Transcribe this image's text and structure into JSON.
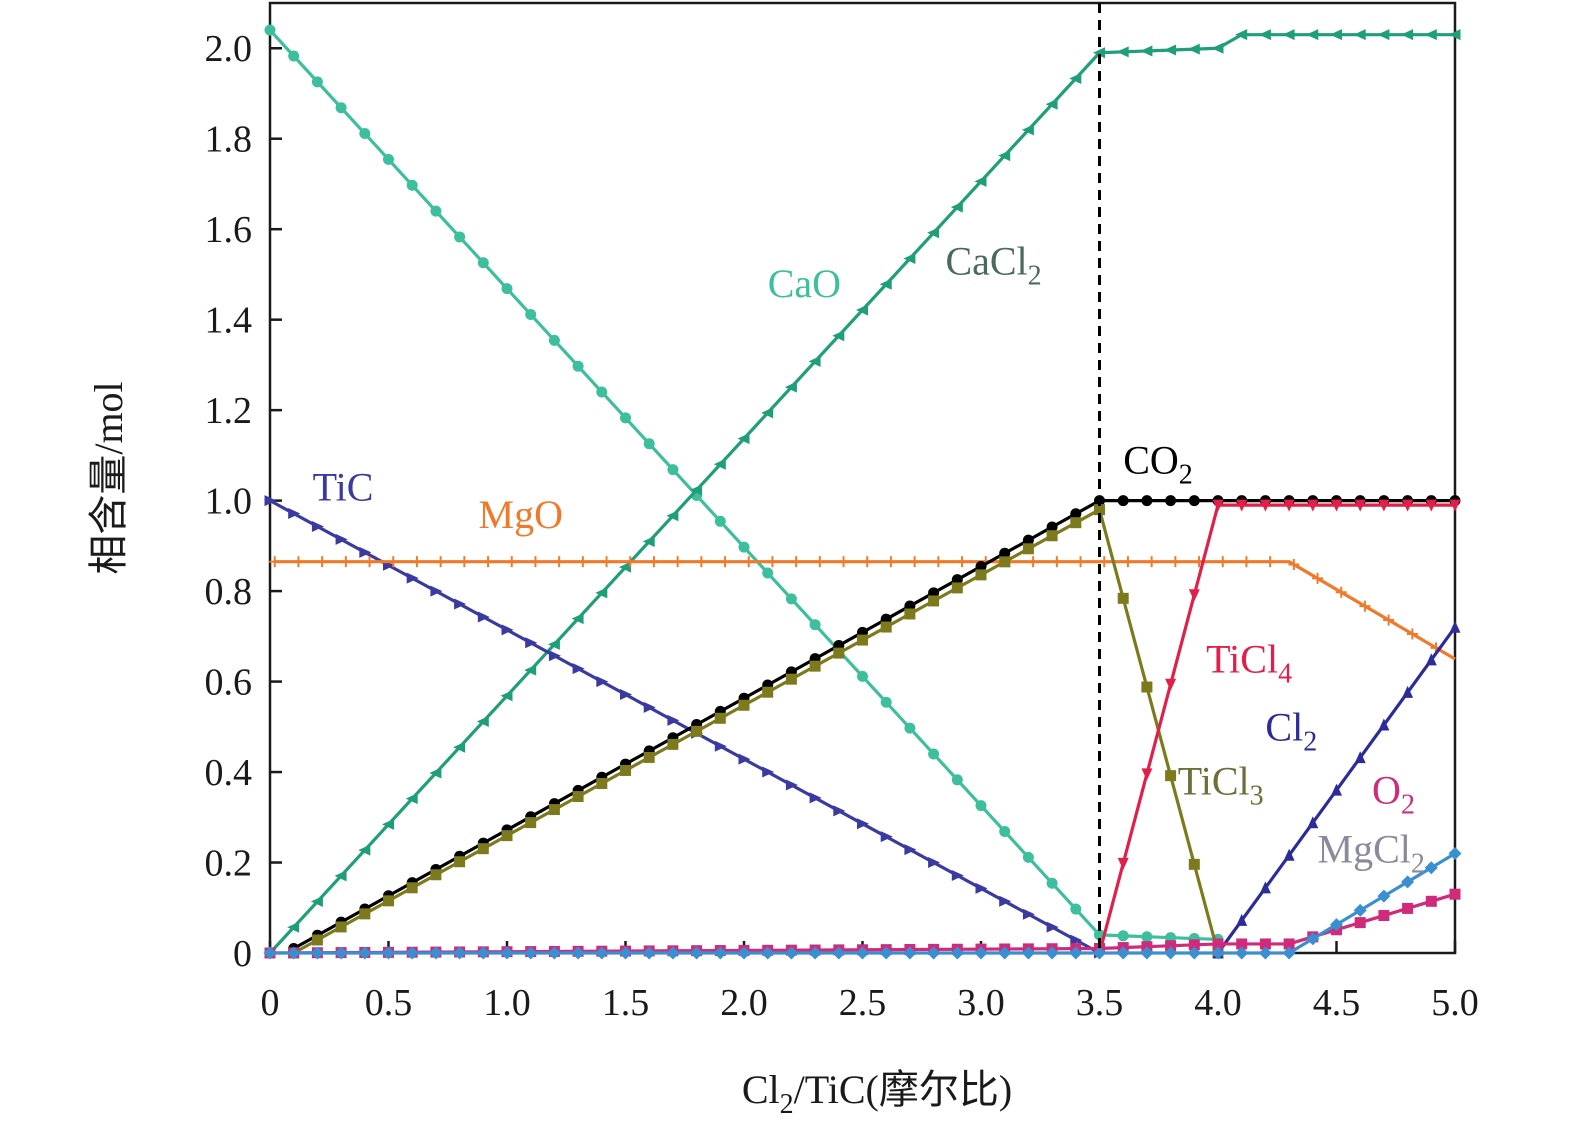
{
  "chart_data": {
    "type": "line",
    "xlabel": "Cl2/TiC(摩尔比)",
    "xlabel_main": "Cl",
    "xlabel_sub": "2",
    "xlabel_rest": "/TiC(摩尔比)",
    "ylabel": "相含量/mol",
    "xlim": [
      0,
      5.0
    ],
    "ylim": [
      0,
      2.1
    ],
    "x_ticks": [
      "0",
      "0.5",
      "1.0",
      "1.5",
      "2.0",
      "2.5",
      "3.0",
      "3.5",
      "4.0",
      "4.5",
      "5.0"
    ],
    "x_tick_values": [
      0,
      0.5,
      1.0,
      1.5,
      2.0,
      2.5,
      3.0,
      3.5,
      4.0,
      4.5,
      5.0
    ],
    "y_ticks": [
      "0",
      "0.2",
      "0.4",
      "0.6",
      "0.8",
      "1.0",
      "1.2",
      "1.4",
      "1.6",
      "1.8",
      "2.0"
    ],
    "y_tick_values": [
      0,
      0.2,
      0.4,
      0.6,
      0.8,
      1.0,
      1.2,
      1.4,
      1.6,
      1.8,
      2.0
    ],
    "reference_line": {
      "x": 3.5,
      "style": "dashed",
      "color": "#000000"
    },
    "series": [
      {
        "name": "CaO",
        "label_main": "CaO",
        "label_sub": "",
        "color": "#3dbf9e",
        "label_color": "#3dbf9e",
        "marker": "circle",
        "label_pos": [
          2.1,
          1.45
        ],
        "x": [
          0,
          3.5,
          4.0
        ],
        "y": [
          2.04,
          0.04,
          0.03
        ]
      },
      {
        "name": "CaCl2",
        "label_main": "CaCl",
        "label_sub": "2",
        "color": "#1f9e7a",
        "label_color": "#4a6a60",
        "marker": "triangle-left",
        "label_pos": [
          2.85,
          1.5
        ],
        "x": [
          0,
          3.5,
          4.0,
          4.1,
          5.0
        ],
        "y": [
          0,
          1.99,
          2.0,
          2.03,
          2.03
        ]
      },
      {
        "name": "TiC",
        "label_main": "TiC",
        "label_sub": "",
        "color": "#3a3aa0",
        "label_color": "#3a3aa0",
        "marker": "triangle-right",
        "label_pos": [
          0.18,
          1.0
        ],
        "x": [
          0,
          3.5
        ],
        "y": [
          1.0,
          0
        ]
      },
      {
        "name": "MgO",
        "label_main": "MgO",
        "label_sub": "",
        "color": "#f07a2a",
        "label_color": "#f07a2a",
        "marker": "plus",
        "label_pos": [
          0.88,
          0.94
        ],
        "x": [
          0.02,
          4.3,
          5.0
        ],
        "y": [
          0.865,
          0.865,
          0.65
        ]
      },
      {
        "name": "CO2",
        "label_main": "CO",
        "label_sub": "2",
        "color": "#000000",
        "label_color": "#000000",
        "marker": "circle",
        "label_pos": [
          3.6,
          1.06
        ],
        "x": [
          0.1,
          3.5,
          5.0
        ],
        "y": [
          0.01,
          1.0,
          1.0
        ]
      },
      {
        "name": "TiCl3",
        "label_main": "TiCl",
        "label_sub": "3",
        "color": "#7c7a1c",
        "label_color": "#6e6e3a",
        "marker": "square",
        "label_pos": [
          3.83,
          0.35
        ],
        "x": [
          0.1,
          3.5,
          4.0
        ],
        "y": [
          0,
          0.98,
          0
        ]
      },
      {
        "name": "TiCl4",
        "label_main": "TiCl",
        "label_sub": "4",
        "color": "#e0204a",
        "label_color": "#e0204a",
        "marker": "triangle-down",
        "label_pos": [
          3.95,
          0.62
        ],
        "x": [
          3.5,
          4.0,
          5.0
        ],
        "y": [
          0,
          0.99,
          0.99
        ]
      },
      {
        "name": "Cl2",
        "label_main": "Cl",
        "label_sub": "2",
        "color": "#2b2b9a",
        "label_color": "#2b2b9a",
        "marker": "triangle-up",
        "label_pos": [
          4.2,
          0.47
        ],
        "x": [
          4.0,
          5.0
        ],
        "y": [
          0,
          0.72
        ]
      },
      {
        "name": "O2",
        "label_main": "O",
        "label_sub": "2",
        "color": "#d02a7a",
        "label_color": "#d02a7a",
        "marker": "square",
        "label_pos": [
          4.65,
          0.33
        ],
        "x": [
          0,
          3.5,
          4.0,
          4.3,
          5.0
        ],
        "y": [
          0,
          0.01,
          0.02,
          0.02,
          0.13
        ]
      },
      {
        "name": "MgCl2",
        "label_main": "MgCl",
        "label_sub": "2",
        "color": "#3a8fd0",
        "label_color": "#8a8a9a",
        "marker": "diamond",
        "label_pos": [
          4.42,
          0.2
        ],
        "x": [
          0,
          4.3,
          5.0
        ],
        "y": [
          0,
          0,
          0.22
        ]
      }
    ]
  }
}
